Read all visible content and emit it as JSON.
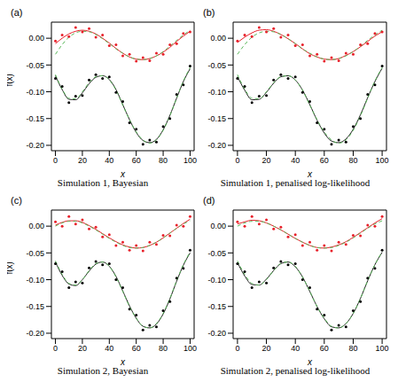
{
  "chart_data": [
    {
      "type": "scatter",
      "title": "(a)",
      "subtitle": "Simulation 1, Bayesian",
      "x_label": "x",
      "y_label": "f(x)",
      "x": [
        0,
        5,
        10,
        15,
        20,
        25,
        30,
        35,
        40,
        45,
        50,
        55,
        60,
        65,
        70,
        75,
        80,
        85,
        90,
        95,
        100
      ],
      "xlim": [
        -3,
        103
      ],
      "xticks": [
        0,
        20,
        40,
        60,
        80,
        100
      ],
      "ylim": [
        -0.21,
        0.03
      ],
      "yticks": [
        {
          "value": -0.2,
          "label": "-0.20"
        },
        {
          "value": -0.15,
          "label": "-0.15"
        },
        {
          "value": -0.1,
          "label": "-0.10"
        },
        {
          "value": -0.05,
          "label": "-0.05"
        },
        {
          "value": 0,
          "label": "0.00"
        }
      ],
      "series": [
        {
          "type": "scatter",
          "color": "#e8202a",
          "marker": "circle",
          "values": [
            -0.005,
            0.006,
            0.003,
            0.02,
            0.012,
            0.018,
            0.002,
            0.006,
            -0.014,
            -0.012,
            -0.033,
            -0.03,
            -0.043,
            -0.036,
            -0.042,
            -0.028,
            -0.03,
            -0.012,
            -0.01,
            0.009,
            0.012
          ]
        },
        {
          "type": "line",
          "color": "#e8202a",
          "line_style": "solid",
          "values": [
            -0.01,
            0.0,
            0.008,
            0.013,
            0.015,
            0.013,
            0.008,
            0.0,
            -0.009,
            -0.019,
            -0.028,
            -0.035,
            -0.039,
            -0.04,
            -0.038,
            -0.033,
            -0.026,
            -0.017,
            -0.006,
            0.004,
            0.013
          ]
        },
        {
          "type": "line",
          "color": "#5cb85c",
          "line_style": "dashed",
          "values": [
            -0.03,
            -0.012,
            0.002,
            0.01,
            0.013,
            0.012,
            0.007,
            -0.001,
            -0.01,
            -0.02,
            -0.028,
            -0.035,
            -0.039,
            -0.04,
            -0.038,
            -0.033,
            -0.025,
            -0.015,
            -0.004,
            0.006,
            0.015
          ]
        },
        {
          "type": "scatter",
          "color": "#000000",
          "marker": "circle",
          "values": [
            -0.075,
            -0.09,
            -0.12,
            -0.108,
            -0.107,
            -0.078,
            -0.068,
            -0.075,
            -0.072,
            -0.101,
            -0.118,
            -0.158,
            -0.17,
            -0.198,
            -0.19,
            -0.194,
            -0.165,
            -0.15,
            -0.105,
            -0.087,
            -0.052
          ]
        },
        {
          "type": "line",
          "color": "#222222",
          "line_style": "solid",
          "values": [
            -0.07,
            -0.096,
            -0.114,
            -0.115,
            -0.102,
            -0.085,
            -0.073,
            -0.07,
            -0.077,
            -0.096,
            -0.124,
            -0.152,
            -0.176,
            -0.191,
            -0.195,
            -0.189,
            -0.171,
            -0.144,
            -0.112,
            -0.081,
            -0.057
          ]
        },
        {
          "type": "line",
          "color": "#5cb85c",
          "line_style": "dashed",
          "values": [
            -0.068,
            -0.095,
            -0.112,
            -0.113,
            -0.1,
            -0.083,
            -0.072,
            -0.07,
            -0.078,
            -0.097,
            -0.125,
            -0.152,
            -0.175,
            -0.19,
            -0.196,
            -0.19,
            -0.172,
            -0.145,
            -0.112,
            -0.08,
            -0.055
          ]
        }
      ]
    },
    {
      "type": "scatter",
      "title": "(b)",
      "subtitle": "Simulation 1, penalised log-likelihood",
      "x_label": "x",
      "x": [
        0,
        5,
        10,
        15,
        20,
        25,
        30,
        35,
        40,
        45,
        50,
        55,
        60,
        65,
        70,
        75,
        80,
        85,
        90,
        95,
        100
      ],
      "xlim": [
        -3,
        103
      ],
      "xticks": [
        0,
        20,
        40,
        60,
        80,
        100
      ],
      "ylim": [
        -0.21,
        0.03
      ],
      "yticks": [
        {
          "value": -0.2,
          "label": "-0.20"
        },
        {
          "value": -0.15,
          "label": "-0.15"
        },
        {
          "value": -0.1,
          "label": "-0.10"
        },
        {
          "value": -0.05,
          "label": "-0.05"
        },
        {
          "value": 0,
          "label": "0.00"
        }
      ],
      "series": [
        {
          "type": "scatter",
          "color": "#e8202a",
          "marker": "circle",
          "values": [
            -0.005,
            0.006,
            0.003,
            0.02,
            0.012,
            0.018,
            0.002,
            0.006,
            -0.014,
            -0.012,
            -0.033,
            -0.03,
            -0.043,
            -0.036,
            -0.042,
            -0.028,
            -0.03,
            -0.012,
            -0.01,
            0.009,
            0.012
          ]
        },
        {
          "type": "line",
          "color": "#e8202a",
          "line_style": "solid",
          "values": [
            -0.008,
            0.002,
            0.01,
            0.015,
            0.016,
            0.013,
            0.007,
            -0.001,
            -0.01,
            -0.02,
            -0.029,
            -0.035,
            -0.039,
            -0.04,
            -0.038,
            -0.032,
            -0.025,
            -0.016,
            -0.006,
            0.004,
            0.012
          ]
        },
        {
          "type": "line",
          "color": "#5cb85c",
          "line_style": "dashed",
          "values": [
            -0.03,
            -0.012,
            0.002,
            0.01,
            0.013,
            0.012,
            0.007,
            -0.001,
            -0.01,
            -0.02,
            -0.028,
            -0.035,
            -0.039,
            -0.04,
            -0.038,
            -0.033,
            -0.025,
            -0.015,
            -0.004,
            0.006,
            0.015
          ]
        },
        {
          "type": "scatter",
          "color": "#000000",
          "marker": "circle",
          "values": [
            -0.075,
            -0.09,
            -0.12,
            -0.108,
            -0.107,
            -0.078,
            -0.068,
            -0.075,
            -0.072,
            -0.101,
            -0.118,
            -0.158,
            -0.17,
            -0.198,
            -0.19,
            -0.194,
            -0.165,
            -0.15,
            -0.105,
            -0.087,
            -0.052
          ]
        },
        {
          "type": "line",
          "color": "#222222",
          "line_style": "solid",
          "values": [
            -0.072,
            -0.097,
            -0.115,
            -0.114,
            -0.101,
            -0.084,
            -0.072,
            -0.07,
            -0.078,
            -0.097,
            -0.124,
            -0.153,
            -0.177,
            -0.192,
            -0.195,
            -0.188,
            -0.17,
            -0.143,
            -0.111,
            -0.081,
            -0.056
          ]
        },
        {
          "type": "line",
          "color": "#5cb85c",
          "line_style": "dashed",
          "values": [
            -0.068,
            -0.095,
            -0.112,
            -0.113,
            -0.1,
            -0.083,
            -0.072,
            -0.07,
            -0.078,
            -0.097,
            -0.125,
            -0.152,
            -0.175,
            -0.19,
            -0.196,
            -0.19,
            -0.172,
            -0.145,
            -0.112,
            -0.08,
            -0.055
          ]
        }
      ]
    },
    {
      "type": "scatter",
      "title": "(c)",
      "subtitle": "Simulation 2, Bayesian",
      "x_label": "x",
      "y_label": "f(x)",
      "x": [
        0,
        5,
        10,
        15,
        20,
        25,
        30,
        35,
        40,
        45,
        50,
        55,
        60,
        65,
        70,
        75,
        80,
        85,
        90,
        95,
        100
      ],
      "xlim": [
        -3,
        103
      ],
      "xticks": [
        0,
        20,
        40,
        60,
        80,
        100
      ],
      "ylim": [
        -0.21,
        0.03
      ],
      "yticks": [
        {
          "value": -0.2,
          "label": "-0.20"
        },
        {
          "value": -0.15,
          "label": "-0.15"
        },
        {
          "value": -0.1,
          "label": "-0.10"
        },
        {
          "value": -0.05,
          "label": "-0.05"
        },
        {
          "value": 0,
          "label": "0.00"
        }
      ],
      "series": [
        {
          "type": "scatter",
          "color": "#e8202a",
          "marker": "circle",
          "values": [
            0.008,
            0.0,
            0.018,
            0.004,
            0.012,
            -0.005,
            -0.002,
            -0.02,
            -0.016,
            -0.036,
            -0.03,
            -0.045,
            -0.036,
            -0.046,
            -0.03,
            -0.034,
            -0.017,
            -0.018,
            0.002,
            0.0,
            0.018
          ]
        },
        {
          "type": "line",
          "color": "#e8202a",
          "line_style": "solid",
          "values": [
            0.002,
            0.007,
            0.01,
            0.01,
            0.007,
            0.001,
            -0.006,
            -0.014,
            -0.022,
            -0.029,
            -0.035,
            -0.039,
            -0.041,
            -0.04,
            -0.036,
            -0.03,
            -0.022,
            -0.013,
            -0.004,
            0.005,
            0.013
          ]
        },
        {
          "type": "line",
          "color": "#5cb85c",
          "line_style": "dashed",
          "values": [
            0.0,
            0.006,
            0.009,
            0.009,
            0.006,
            0.0,
            -0.007,
            -0.015,
            -0.023,
            -0.03,
            -0.036,
            -0.04,
            -0.041,
            -0.04,
            -0.036,
            -0.03,
            -0.022,
            -0.013,
            -0.004,
            0.004,
            0.01
          ]
        },
        {
          "type": "scatter",
          "color": "#000000",
          "marker": "circle",
          "values": [
            -0.07,
            -0.085,
            -0.115,
            -0.104,
            -0.106,
            -0.078,
            -0.066,
            -0.072,
            -0.07,
            -0.1,
            -0.115,
            -0.155,
            -0.166,
            -0.194,
            -0.185,
            -0.188,
            -0.158,
            -0.141,
            -0.097,
            -0.079,
            -0.045
          ]
        },
        {
          "type": "line",
          "color": "#222222",
          "line_style": "solid",
          "values": [
            -0.067,
            -0.092,
            -0.108,
            -0.111,
            -0.1,
            -0.084,
            -0.071,
            -0.067,
            -0.075,
            -0.094,
            -0.121,
            -0.149,
            -0.172,
            -0.187,
            -0.19,
            -0.183,
            -0.164,
            -0.136,
            -0.103,
            -0.073,
            -0.05
          ]
        },
        {
          "type": "line",
          "color": "#5cb85c",
          "line_style": "dashed",
          "values": [
            -0.065,
            -0.09,
            -0.107,
            -0.11,
            -0.1,
            -0.083,
            -0.07,
            -0.067,
            -0.075,
            -0.095,
            -0.122,
            -0.15,
            -0.172,
            -0.187,
            -0.19,
            -0.182,
            -0.163,
            -0.135,
            -0.102,
            -0.072,
            -0.048
          ]
        }
      ]
    },
    {
      "type": "scatter",
      "title": "(d)",
      "subtitle": "Simulation 2, penalised log-likelihood",
      "x_label": "x",
      "x": [
        0,
        5,
        10,
        15,
        20,
        25,
        30,
        35,
        40,
        45,
        50,
        55,
        60,
        65,
        70,
        75,
        80,
        85,
        90,
        95,
        100
      ],
      "xlim": [
        -3,
        103
      ],
      "xticks": [
        0,
        20,
        40,
        60,
        80,
        100
      ],
      "ylim": [
        -0.21,
        0.03
      ],
      "yticks": [
        {
          "value": -0.2,
          "label": "-0.20"
        },
        {
          "value": -0.15,
          "label": "-0.15"
        },
        {
          "value": -0.1,
          "label": "-0.10"
        },
        {
          "value": -0.05,
          "label": "-0.05"
        },
        {
          "value": 0,
          "label": "0.00"
        }
      ],
      "series": [
        {
          "type": "scatter",
          "color": "#e8202a",
          "marker": "circle",
          "values": [
            0.008,
            0.0,
            0.018,
            0.004,
            0.012,
            -0.005,
            -0.002,
            -0.02,
            -0.016,
            -0.036,
            -0.03,
            -0.045,
            -0.036,
            -0.046,
            -0.03,
            -0.034,
            -0.017,
            -0.018,
            0.002,
            0.0,
            0.018
          ]
        },
        {
          "type": "line",
          "color": "#e8202a",
          "line_style": "solid",
          "values": [
            0.004,
            0.008,
            0.011,
            0.01,
            0.006,
            0.0,
            -0.007,
            -0.015,
            -0.023,
            -0.03,
            -0.036,
            -0.04,
            -0.041,
            -0.039,
            -0.035,
            -0.029,
            -0.021,
            -0.012,
            -0.003,
            0.006,
            0.014
          ]
        },
        {
          "type": "line",
          "color": "#5cb85c",
          "line_style": "dashed",
          "values": [
            0.0,
            0.006,
            0.009,
            0.009,
            0.006,
            0.0,
            -0.007,
            -0.015,
            -0.023,
            -0.03,
            -0.036,
            -0.04,
            -0.041,
            -0.04,
            -0.036,
            -0.03,
            -0.022,
            -0.013,
            -0.004,
            0.004,
            0.01
          ]
        },
        {
          "type": "scatter",
          "color": "#000000",
          "marker": "circle",
          "values": [
            -0.07,
            -0.085,
            -0.115,
            -0.104,
            -0.106,
            -0.078,
            -0.066,
            -0.072,
            -0.07,
            -0.1,
            -0.115,
            -0.155,
            -0.166,
            -0.194,
            -0.185,
            -0.188,
            -0.158,
            -0.141,
            -0.097,
            -0.079,
            -0.045
          ]
        },
        {
          "type": "line",
          "color": "#222222",
          "line_style": "solid",
          "values": [
            -0.068,
            -0.093,
            -0.109,
            -0.11,
            -0.099,
            -0.083,
            -0.07,
            -0.067,
            -0.076,
            -0.095,
            -0.122,
            -0.15,
            -0.173,
            -0.188,
            -0.19,
            -0.182,
            -0.163,
            -0.135,
            -0.102,
            -0.072,
            -0.049
          ]
        },
        {
          "type": "line",
          "color": "#5cb85c",
          "line_style": "dashed",
          "values": [
            -0.065,
            -0.09,
            -0.107,
            -0.11,
            -0.1,
            -0.083,
            -0.07,
            -0.067,
            -0.075,
            -0.095,
            -0.122,
            -0.15,
            -0.172,
            -0.187,
            -0.19,
            -0.182,
            -0.163,
            -0.135,
            -0.102,
            -0.072,
            -0.048
          ]
        }
      ]
    }
  ]
}
